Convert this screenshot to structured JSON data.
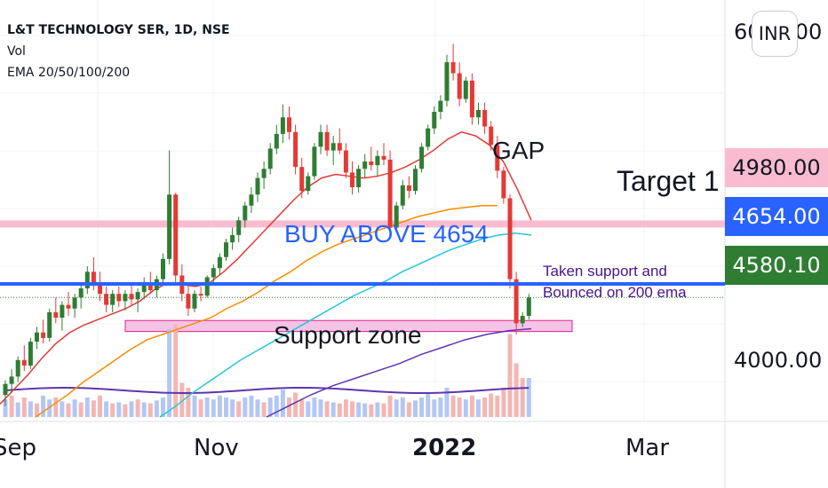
{
  "header": {
    "symbol_line": "L&T TECHNOLOGY SER, 1D, NSE",
    "volume_label": "Vol",
    "ema_label": "EMA 20/50/100/200"
  },
  "currency_button": "INR",
  "price_axis": {
    "top_tick": "6000.00",
    "tick_4000": "4000.00"
  },
  "price_labels": {
    "target": "4980.00",
    "buy": "4654.00",
    "last": "4580.10"
  },
  "x_axis": {
    "sep": "Sep",
    "nov": "Nov",
    "year": "2022",
    "mar": "Mar"
  },
  "annotations": {
    "gap": "GAP",
    "target": "Target 1",
    "buy": "BUY ABOVE 4654",
    "support_note_1": "Taken support and",
    "support_note_2": "Bounced on 200 ema",
    "support_zone": "Support zone"
  },
  "colors": {
    "up": "#26a69a",
    "down": "#ef5350",
    "up_candle": "#2e7d32",
    "down_candle": "#e53935",
    "ema20": "#e53935",
    "ema50": "#fb8c00",
    "ema100": "#26c6da",
    "ema200": "#5e35b1",
    "target_band": "#f8bbd0",
    "buy_line": "#2962ff",
    "support_zone": "#f3c4e6",
    "support_border": "#e91e8c",
    "vol_up": "#b3c7f5",
    "vol_down": "#f4b6b3",
    "note_text": "#4a148c"
  },
  "chart_data": {
    "type": "candlestick",
    "title": "L&T TECHNOLOGY SER, 1D, NSE",
    "xlabel": "",
    "ylabel": "",
    "x_ticks": [
      "Sep",
      "Nov",
      "2022",
      "Mar"
    ],
    "y_ticks": [
      4000,
      6000
    ],
    "ylim": [
      3930,
      6150
    ],
    "levels": {
      "target_1": 4980.0,
      "buy_above": 4654.0,
      "last_price": 4580.1,
      "support_zone": [
        4395,
        4455
      ]
    },
    "candles_ohlc": [
      [
        4050,
        4130,
        3990,
        4110
      ],
      [
        4110,
        4190,
        4060,
        4150
      ],
      [
        4150,
        4260,
        4120,
        4240
      ],
      [
        4240,
        4320,
        4180,
        4210
      ],
      [
        4210,
        4360,
        4190,
        4340
      ],
      [
        4340,
        4420,
        4300,
        4390
      ],
      [
        4390,
        4460,
        4330,
        4360
      ],
      [
        4360,
        4520,
        4340,
        4500
      ],
      [
        4500,
        4580,
        4440,
        4470
      ],
      [
        4470,
        4560,
        4400,
        4540
      ],
      [
        4540,
        4610,
        4480,
        4520
      ],
      [
        4520,
        4600,
        4470,
        4580
      ],
      [
        4580,
        4660,
        4520,
        4630
      ],
      [
        4630,
        4750,
        4600,
        4720
      ],
      [
        4720,
        4800,
        4620,
        4660
      ],
      [
        4660,
        4720,
        4560,
        4600
      ],
      [
        4600,
        4640,
        4500,
        4540
      ],
      [
        4540,
        4620,
        4500,
        4600
      ],
      [
        4600,
        4640,
        4530,
        4560
      ],
      [
        4560,
        4620,
        4510,
        4600
      ],
      [
        4600,
        4660,
        4540,
        4570
      ],
      [
        4570,
        4630,
        4500,
        4610
      ],
      [
        4610,
        4690,
        4570,
        4650
      ],
      [
        4650,
        4720,
        4600,
        4620
      ],
      [
        4620,
        4700,
        4580,
        4680
      ],
      [
        4680,
        4820,
        4650,
        4790
      ],
      [
        4790,
        5380,
        4760,
        5140
      ],
      [
        5140,
        5150,
        4650,
        4700
      ],
      [
        4700,
        4760,
        4560,
        4600
      ],
      [
        4600,
        4650,
        4480,
        4520
      ],
      [
        4520,
        4620,
        4500,
        4600
      ],
      [
        4600,
        4640,
        4560,
        4590
      ],
      [
        4590,
        4700,
        4580,
        4690
      ],
      [
        4690,
        4760,
        4650,
        4740
      ],
      [
        4740,
        4820,
        4700,
        4800
      ],
      [
        4800,
        4900,
        4780,
        4880
      ],
      [
        4880,
        4960,
        4840,
        4920
      ],
      [
        4920,
        5020,
        4880,
        5000
      ],
      [
        5000,
        5100,
        4960,
        5080
      ],
      [
        5080,
        5180,
        5040,
        5140
      ],
      [
        5140,
        5260,
        5100,
        5230
      ],
      [
        5230,
        5320,
        5170,
        5280
      ],
      [
        5280,
        5420,
        5250,
        5390
      ],
      [
        5390,
        5520,
        5360,
        5470
      ],
      [
        5470,
        5630,
        5420,
        5560
      ],
      [
        5560,
        5620,
        5440,
        5480
      ],
      [
        5480,
        5520,
        5250,
        5290
      ],
      [
        5290,
        5340,
        5120,
        5160
      ],
      [
        5160,
        5260,
        5140,
        5240
      ],
      [
        5240,
        5420,
        5220,
        5400
      ],
      [
        5400,
        5520,
        5360,
        5480
      ],
      [
        5480,
        5520,
        5350,
        5380
      ],
      [
        5380,
        5460,
        5300,
        5420
      ],
      [
        5420,
        5500,
        5360,
        5380
      ],
      [
        5380,
        5420,
        5230,
        5260
      ],
      [
        5260,
        5320,
        5140,
        5180
      ],
      [
        5180,
        5300,
        5150,
        5280
      ],
      [
        5280,
        5360,
        5230,
        5320
      ],
      [
        5320,
        5400,
        5270,
        5300
      ],
      [
        5300,
        5380,
        5240,
        5350
      ],
      [
        5350,
        5420,
        5300,
        5330
      ],
      [
        5330,
        5380,
        4920,
        4960
      ],
      [
        4960,
        5100,
        4940,
        5080
      ],
      [
        5080,
        5220,
        5060,
        5190
      ],
      [
        5190,
        5240,
        5120,
        5160
      ],
      [
        5160,
        5300,
        5140,
        5280
      ],
      [
        5280,
        5420,
        5260,
        5400
      ],
      [
        5400,
        5520,
        5380,
        5500
      ],
      [
        5500,
        5620,
        5470,
        5590
      ],
      [
        5590,
        5680,
        5550,
        5650
      ],
      [
        5650,
        5900,
        5620,
        5860
      ],
      [
        5860,
        5960,
        5760,
        5800
      ],
      [
        5800,
        5860,
        5620,
        5660
      ],
      [
        5660,
        5780,
        5640,
        5760
      ],
      [
        5760,
        5800,
        5520,
        5560
      ],
      [
        5560,
        5640,
        5520,
        5600
      ],
      [
        5600,
        5640,
        5470,
        5510
      ],
      [
        5510,
        5540,
        5380,
        5410
      ],
      [
        5410,
        5460,
        5230,
        5270
      ],
      [
        5270,
        5290,
        5090,
        5120
      ],
      [
        5120,
        5140,
        4630,
        4680
      ],
      [
        4680,
        4720,
        4380,
        4440
      ],
      [
        4440,
        4500,
        4420,
        4480
      ],
      [
        4480,
        4600,
        4460,
        4580
      ]
    ],
    "series": [
      {
        "name": "EMA 20",
        "values": [
          4000,
          4080,
          4160,
          4250,
          4330,
          4390,
          4430,
          4460,
          4490,
          4520,
          4560,
          4620,
          4660,
          4650,
          4640,
          4660,
          4720,
          4790,
          4870,
          4950,
          5030,
          5110,
          5180,
          5230,
          5250,
          5240,
          5230,
          5240,
          5260,
          5290,
          5330,
          5380,
          5440,
          5480,
          5460,
          5410,
          5320,
          5170,
          5000
        ]
      },
      {
        "name": "EMA 50",
        "values": [
          3930,
          3990,
          4050,
          4120,
          4180,
          4240,
          4300,
          4350,
          4380,
          4410,
          4440,
          4470,
          4520,
          4560,
          4610,
          4670,
          4720,
          4780,
          4830,
          4870,
          4900,
          4930,
          4960,
          4990,
          5020,
          5040,
          5060,
          5070,
          5080,
          5080
        ]
      },
      {
        "name": "EMA 100",
        "values": [
          3930,
          3990,
          4060,
          4120,
          4180,
          4240,
          4290,
          4340,
          4390,
          4440,
          4490,
          4540,
          4590,
          4630,
          4670,
          4720,
          4760,
          4800,
          4840,
          4870,
          4900,
          4920,
          4930,
          4920
        ]
      },
      {
        "name": "EMA 200",
        "values": [
          3930,
          3990,
          4050,
          4100,
          4140,
          4180,
          4220,
          4270,
          4310,
          4350,
          4380,
          4400,
          4410
        ]
      }
    ],
    "volume": [
      [
        0.18,
        "u"
      ],
      [
        0.22,
        "d"
      ],
      [
        0.15,
        "u"
      ],
      [
        0.2,
        "d"
      ],
      [
        0.16,
        "u"
      ],
      [
        0.14,
        "d"
      ],
      [
        0.22,
        "u"
      ],
      [
        0.18,
        "u"
      ],
      [
        0.2,
        "d"
      ],
      [
        0.16,
        "u"
      ],
      [
        0.14,
        "d"
      ],
      [
        0.18,
        "u"
      ],
      [
        0.15,
        "d"
      ],
      [
        0.2,
        "u"
      ],
      [
        0.17,
        "d"
      ],
      [
        0.22,
        "d"
      ],
      [
        0.16,
        "u"
      ],
      [
        0.14,
        "d"
      ],
      [
        0.15,
        "u"
      ],
      [
        0.13,
        "d"
      ],
      [
        0.16,
        "u"
      ],
      [
        0.18,
        "d"
      ],
      [
        0.15,
        "u"
      ],
      [
        0.14,
        "d"
      ],
      [
        0.17,
        "u"
      ],
      [
        0.2,
        "u"
      ],
      [
        0.9,
        "u"
      ],
      [
        0.95,
        "d"
      ],
      [
        0.35,
        "d"
      ],
      [
        0.3,
        "d"
      ],
      [
        0.22,
        "u"
      ],
      [
        0.18,
        "d"
      ],
      [
        0.2,
        "u"
      ],
      [
        0.18,
        "u"
      ],
      [
        0.22,
        "u"
      ],
      [
        0.2,
        "u"
      ],
      [
        0.18,
        "u"
      ],
      [
        0.16,
        "d"
      ],
      [
        0.2,
        "u"
      ],
      [
        0.22,
        "u"
      ],
      [
        0.18,
        "u"
      ],
      [
        0.15,
        "d"
      ],
      [
        0.2,
        "u"
      ],
      [
        0.22,
        "u"
      ],
      [
        0.28,
        "u"
      ],
      [
        0.2,
        "d"
      ],
      [
        0.25,
        "d"
      ],
      [
        0.18,
        "d"
      ],
      [
        0.16,
        "u"
      ],
      [
        0.2,
        "u"
      ],
      [
        0.18,
        "u"
      ],
      [
        0.16,
        "d"
      ],
      [
        0.15,
        "u"
      ],
      [
        0.14,
        "d"
      ],
      [
        0.18,
        "d"
      ],
      [
        0.16,
        "d"
      ],
      [
        0.15,
        "u"
      ],
      [
        0.14,
        "u"
      ],
      [
        0.13,
        "d"
      ],
      [
        0.15,
        "u"
      ],
      [
        0.14,
        "d"
      ],
      [
        0.22,
        "d"
      ],
      [
        0.18,
        "u"
      ],
      [
        0.2,
        "u"
      ],
      [
        0.15,
        "d"
      ],
      [
        0.17,
        "u"
      ],
      [
        0.2,
        "u"
      ],
      [
        0.25,
        "u"
      ],
      [
        0.18,
        "u"
      ],
      [
        0.2,
        "u"
      ],
      [
        0.3,
        "u"
      ],
      [
        0.22,
        "d"
      ],
      [
        0.2,
        "d"
      ],
      [
        0.18,
        "u"
      ],
      [
        0.22,
        "d"
      ],
      [
        0.18,
        "u"
      ],
      [
        0.2,
        "d"
      ],
      [
        0.24,
        "d"
      ],
      [
        0.22,
        "d"
      ],
      [
        0.3,
        "d"
      ],
      [
        0.85,
        "d"
      ],
      [
        0.55,
        "d"
      ],
      [
        0.4,
        "d"
      ],
      [
        0.4,
        "u"
      ]
    ]
  }
}
